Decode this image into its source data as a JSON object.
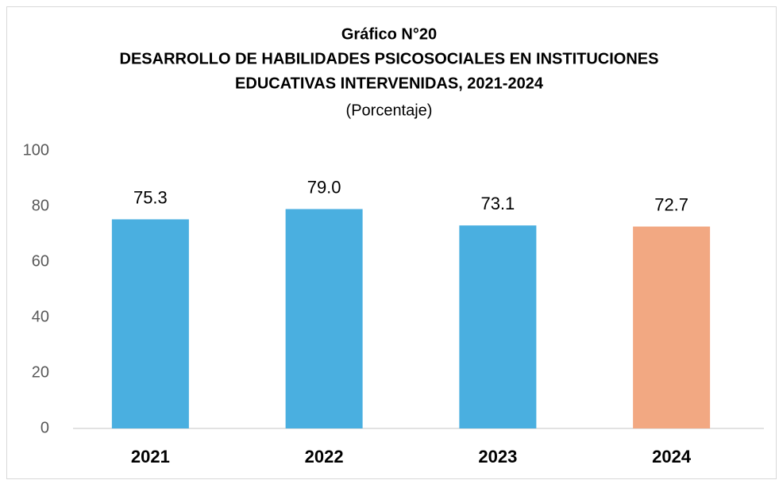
{
  "chart_data": {
    "type": "bar",
    "title": [
      "Gráfico N°20",
      "DESARROLLO DE HABILIDADES PSICOSOCIALES EN INSTITUCIONES",
      "EDUCATIVAS INTERVENIDAS, 2021-2024"
    ],
    "subtitle": "(Porcentaje)",
    "categories": [
      "2021",
      "2022",
      "2023",
      "2024"
    ],
    "values": [
      75.3,
      79.0,
      73.1,
      72.7
    ],
    "value_labels": [
      "75.3",
      "79.0",
      "73.1",
      "72.7"
    ],
    "colors": [
      "#4aafe0",
      "#4aafe0",
      "#4aafe0",
      "#f2a882"
    ],
    "ylim": [
      0,
      100
    ],
    "yticks": [
      0,
      20,
      40,
      60,
      80,
      100
    ],
    "grid": false
  }
}
